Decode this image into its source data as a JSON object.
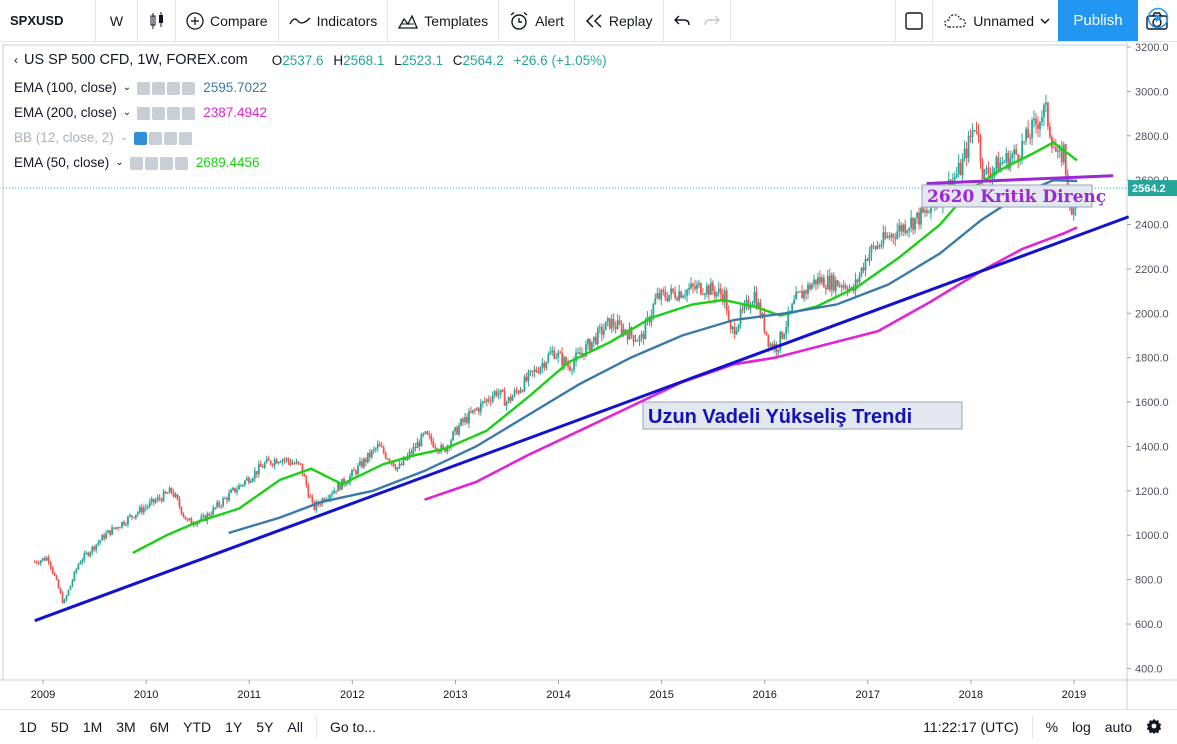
{
  "toolbar": {
    "symbol": "SPXUSD",
    "interval": "W",
    "compare": "Compare",
    "indicators": "Indicators",
    "templates": "Templates",
    "alert": "Alert",
    "replay": "Replay",
    "layout_name": "Unnamed",
    "publish": "Publish"
  },
  "legend": {
    "title": "US SP 500 CFD, 1W, FOREX.com",
    "o_label": "O",
    "o_value": "2537.6",
    "h_label": "H",
    "h_value": "2568.1",
    "l_label": "L",
    "l_value": "2523.1",
    "c_label": "C",
    "c_value": "2564.2",
    "change": "+26.6 (+1.05%)",
    "indicators": [
      {
        "name": "EMA (100, close)",
        "value": "2595.7022",
        "color": "#3a7aa8"
      },
      {
        "name": "EMA (200, close)",
        "value": "2387.4942",
        "color": "#e024d6"
      },
      {
        "name": "BB (12, close, 2)",
        "value": "",
        "color": "#aab0bb"
      },
      {
        "name": "EMA (50, close)",
        "value": "2689.4456",
        "color": "#19d113"
      }
    ]
  },
  "annotations": {
    "resistance_label": "2620 Kritik Direnç",
    "trend_label": "Uzun Vadeli Yükseliş Trendi"
  },
  "price_axis": {
    "ticks": [
      "3200.0",
      "3000.0",
      "2800.0",
      "2600.0",
      "2400.0",
      "2200.0",
      "2000.0",
      "1800.0",
      "1600.0",
      "1400.0",
      "1200.0",
      "1000.0",
      "800.0",
      "600.0",
      "400.0"
    ],
    "last_price": "2564.2"
  },
  "time_axis": {
    "ticks": [
      "2009",
      "2010",
      "2011",
      "2012",
      "2013",
      "2014",
      "2015",
      "2016",
      "2017",
      "2018",
      "2019"
    ]
  },
  "bottombar": {
    "ranges": [
      "1D",
      "5D",
      "1M",
      "3M",
      "6M",
      "YTD",
      "1Y",
      "5Y",
      "All"
    ],
    "goto": "Go to...",
    "clock": "11:22:17 (UTC)",
    "percent": "%",
    "log": "log",
    "auto": "auto"
  },
  "colors": {
    "up": "#26a69a",
    "down": "#ef5350",
    "ema50": "#19d113",
    "ema100": "#3a7aa8",
    "ema200": "#e024d6",
    "trendline": "#1212d0",
    "resistance": "#9c27d6"
  }
}
